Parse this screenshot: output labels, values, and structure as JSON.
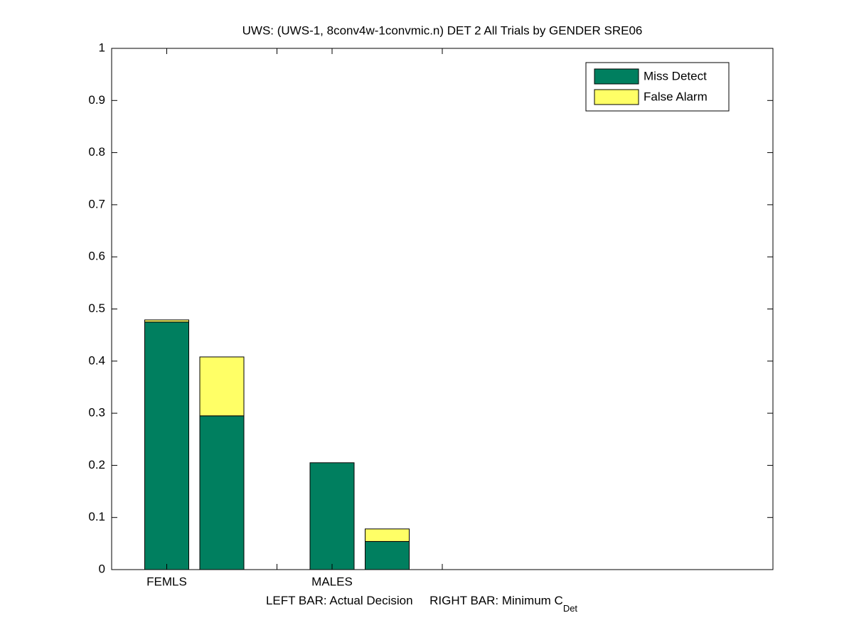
{
  "chart_data": {
    "type": "stacked_bar",
    "title": "UWS: (UWS-1, 8conv4w-1convmic.n) DET 2 All Trials by GENDER SRE06",
    "xlabel": "LEFT BAR: Actual Decision     RIGHT BAR: Minimum C",
    "xlabel_subscript": "Det",
    "x": [
      1,
      2,
      4,
      5
    ],
    "xlim": [
      0,
      12
    ],
    "xticks": [
      1,
      3,
      4,
      6
    ],
    "xtick_labels": [
      "FEMLS",
      null,
      "MALES",
      null
    ],
    "ylim": [
      0,
      1
    ],
    "yticks": [
      0,
      0.1,
      0.2,
      0.3,
      0.4,
      0.5,
      0.6,
      0.7,
      0.8,
      0.9,
      1
    ],
    "series": [
      {
        "name": "Miss Detect",
        "color": "#007f5f",
        "values": [
          0.475,
          0.295,
          0.205,
          0.054
        ]
      },
      {
        "name": "False Alarm",
        "color": "#ffff66",
        "values": [
          0.004,
          0.113,
          0,
          0.024
        ]
      }
    ],
    "legend": "top-right",
    "grid": false
  }
}
